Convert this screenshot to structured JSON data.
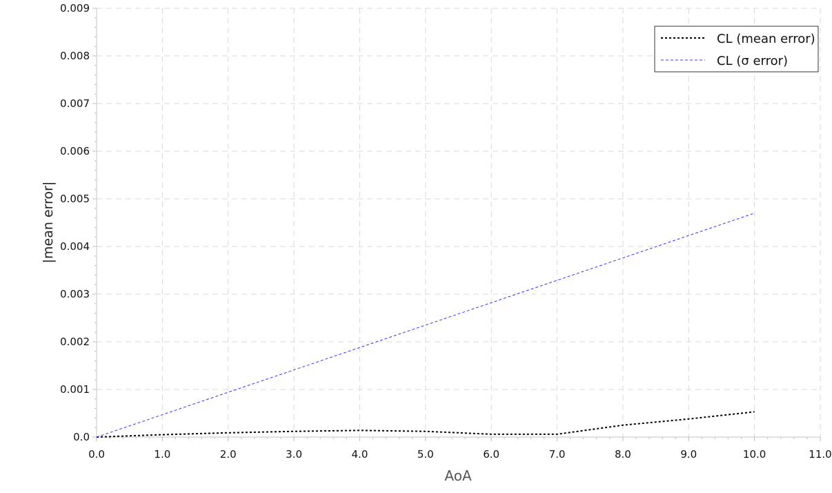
{
  "chart_data": {
    "type": "line",
    "title": "",
    "xlabel": "AoA",
    "ylabel": "|mean error|",
    "xlim": [
      0,
      11
    ],
    "ylim": [
      0,
      0.009
    ],
    "x_ticks": [
      "0.0",
      "1.0",
      "2.0",
      "3.0",
      "4.0",
      "5.0",
      "6.0",
      "7.0",
      "8.0",
      "9.0",
      "10.0",
      "11.0"
    ],
    "y_ticks": [
      "0.0",
      "0.001",
      "0.002",
      "0.003",
      "0.004",
      "0.005",
      "0.006",
      "0.007",
      "0.008",
      "0.009"
    ],
    "grid": true,
    "legend_position": "top-right",
    "series": [
      {
        "name": "CL (mean error)",
        "color": "#000000",
        "style": "dotted",
        "x": [
          0,
          1,
          2,
          3,
          4,
          5,
          6,
          7,
          8,
          9,
          10
        ],
        "y": [
          0.0,
          5e-05,
          9e-05,
          0.00012,
          0.00014,
          0.00012,
          6e-05,
          6e-05,
          0.00025,
          0.00038,
          0.00053
        ]
      },
      {
        "name": "CL (σ error)",
        "color": "#3333ff",
        "style": "dashed",
        "x": [
          0,
          1,
          2,
          3,
          4,
          5,
          6,
          7,
          8,
          9,
          10
        ],
        "y": [
          0.0,
          0.00047,
          0.00094,
          0.00141,
          0.00188,
          0.00235,
          0.00282,
          0.00329,
          0.00376,
          0.00423,
          0.0047
        ]
      }
    ]
  }
}
